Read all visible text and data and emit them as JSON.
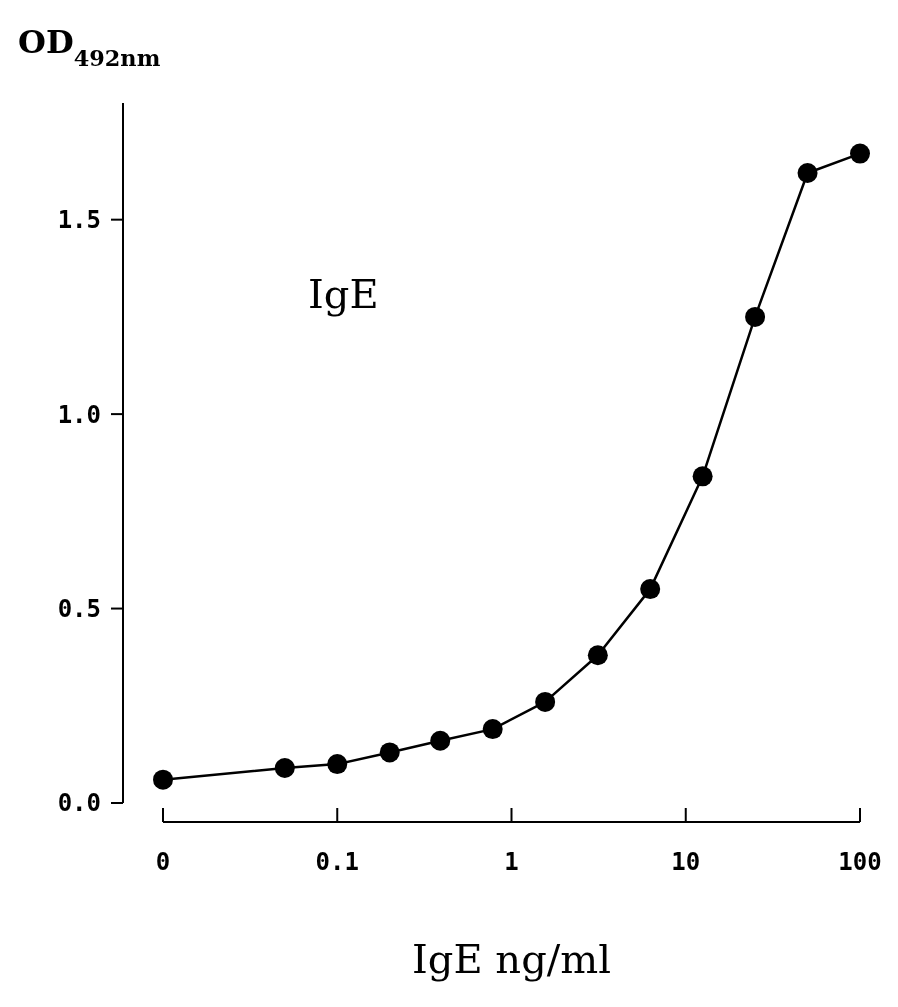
{
  "chart_data": {
    "type": "line",
    "xlabel": "IgE ng/ml",
    "ylabel": "OD$_{492nm}$",
    "annotations": [
      "IgE"
    ],
    "x": [
      0.01,
      0.05,
      0.1,
      0.2,
      0.39,
      0.78,
      1.56,
      3.13,
      6.25,
      12.5,
      25,
      50,
      100
    ],
    "series": [
      {
        "color": "#000000",
        "values": [
          0.06,
          0.09,
          0.1,
          0.13,
          0.16,
          0.19,
          0.26,
          0.38,
          0.55,
          0.84,
          1.25,
          1.62,
          1.67
        ]
      }
    ],
    "log": "x",
    "xlim": [
      0.01,
      100
    ],
    "xticks": [
      {
        "value": 0.01,
        "label": "0"
      },
      0.1,
      1,
      10,
      100
    ],
    "ylim": [
      0,
      1.8
    ],
    "yticks": [
      {
        "value": 0,
        "label": "0.0"
      },
      1.5,
      {
        "value": 1.0,
        "label": "1.0"
      },
      0.5
    ],
    "marker": "circle",
    "line_style": "solid",
    "grid": false
  }
}
